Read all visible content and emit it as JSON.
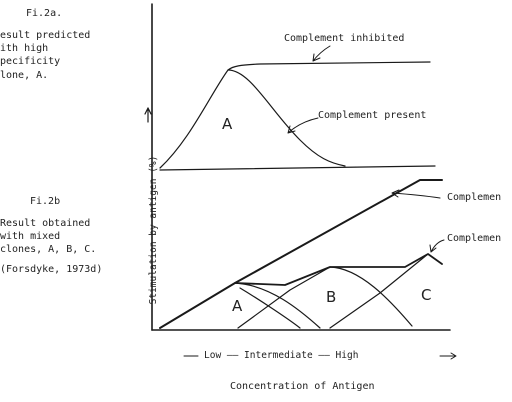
{
  "fig2a": {
    "label": "Fi.2a.",
    "note": [
      "esult predicted",
      "ith high",
      "pecificity",
      "lone, A."
    ]
  },
  "fig2b": {
    "label": "Fi.2b",
    "note": [
      "Result obtained",
      "with mixed",
      "clones, A, B, C.",
      "(Forsdyke, 1973d)"
    ]
  },
  "top_panel": {
    "curve_label_inhibited": "Complement inhibited",
    "curve_label_present": "Complement present",
    "region_label": "A"
  },
  "bottom_panel": {
    "curve_label_1": "Complemen",
    "curve_label_2": "Complemen",
    "region_labels": [
      "A",
      "B",
      "C"
    ]
  },
  "y_axis_label": "Stimulation by antigen (%)",
  "x_axis_scale": "Low —— Intermediate —— High",
  "x_axis_label": "Concentration of Antigen"
}
